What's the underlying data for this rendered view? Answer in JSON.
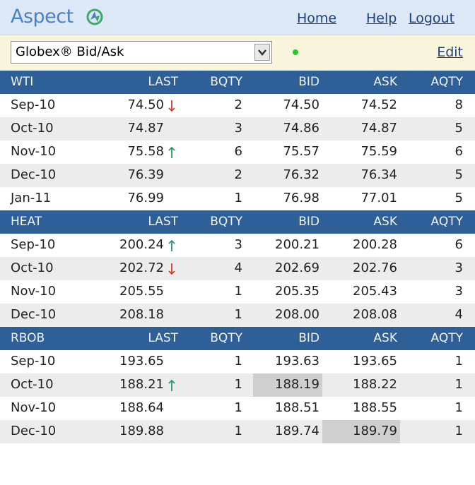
{
  "header": {
    "logo": "Aspect",
    "links": [
      "Home",
      "Help",
      "Logout"
    ]
  },
  "toolbar": {
    "selector": "Globex® Bid/Ask",
    "edit": "Edit"
  },
  "columns": [
    "LAST",
    "BQTY",
    "BID",
    "ASK",
    "AQTY"
  ],
  "sections": [
    {
      "name": "WTI",
      "rows": [
        {
          "month": "Sep-10",
          "last": "74.50",
          "trend": "down",
          "bqty": "2",
          "bid": "74.50",
          "ask": "74.52",
          "aqty": "8"
        },
        {
          "month": "Oct-10",
          "last": "74.87",
          "bqty": "3",
          "bid": "74.86",
          "ask": "74.87",
          "aqty": "5"
        },
        {
          "month": "Nov-10",
          "last": "75.58",
          "trend": "up",
          "bqty": "6",
          "bid": "75.57",
          "ask": "75.59",
          "aqty": "6"
        },
        {
          "month": "Dec-10",
          "last": "76.39",
          "bqty": "2",
          "bid": "76.32",
          "ask": "76.34",
          "aqty": "5"
        },
        {
          "month": "Jan-11",
          "last": "76.99",
          "bqty": "1",
          "bid": "76.98",
          "ask": "77.01",
          "aqty": "5"
        }
      ]
    },
    {
      "name": "HEAT",
      "rows": [
        {
          "month": "Sep-10",
          "last": "200.24",
          "trend": "up",
          "bqty": "3",
          "bid": "200.21",
          "ask": "200.28",
          "aqty": "6"
        },
        {
          "month": "Oct-10",
          "last": "202.72",
          "trend": "down",
          "bqty": "4",
          "bid": "202.69",
          "ask": "202.76",
          "aqty": "3"
        },
        {
          "month": "Nov-10",
          "last": "205.55",
          "bqty": "1",
          "bid": "205.35",
          "ask": "205.43",
          "aqty": "3"
        },
        {
          "month": "Dec-10",
          "last": "208.18",
          "bqty": "1",
          "bid": "208.00",
          "ask": "208.08",
          "aqty": "4"
        }
      ]
    },
    {
      "name": "RBOB",
      "rows": [
        {
          "month": "Sep-10",
          "last": "193.65",
          "bqty": "1",
          "bid": "193.63",
          "ask": "193.65",
          "aqty": "1"
        },
        {
          "month": "Oct-10",
          "last": "188.21",
          "trend": "up",
          "bqty": "1",
          "bid": "188.19",
          "ask": "188.22",
          "aqty": "1",
          "highlight": "bid"
        },
        {
          "month": "Nov-10",
          "last": "188.64",
          "bqty": "1",
          "bid": "188.51",
          "ask": "188.55",
          "aqty": "1"
        },
        {
          "month": "Dec-10",
          "last": "189.88",
          "bqty": "1",
          "bid": "189.74",
          "ask": "189.79",
          "aqty": "1",
          "highlight": "ask"
        }
      ]
    }
  ]
}
